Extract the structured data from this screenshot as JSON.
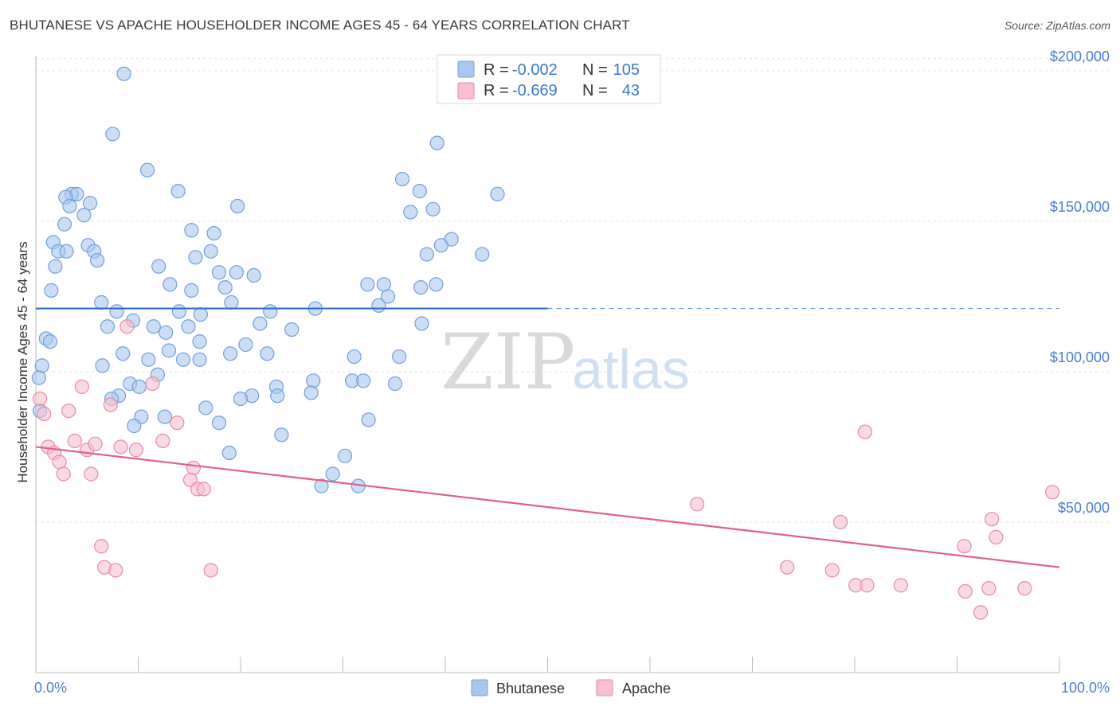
{
  "header": {
    "title": "BHUTANESE VS APACHE HOUSEHOLDER INCOME AGES 45 - 64 YEARS CORRELATION CHART",
    "source": "Source: ZipAtlas.com"
  },
  "watermark": {
    "zip": "ZIP",
    "atlas": "atlas"
  },
  "legend": {
    "rows": [
      {
        "r_label": "R =",
        "r_value": "-0.002",
        "n_label": "N =",
        "n_value": "105",
        "color": "#a9c8ef",
        "stroke": "#6fa0dc"
      },
      {
        "r_label": "R =",
        "r_value": "-0.669",
        "n_label": "N =",
        "n_value": "43",
        "color": "#f7bfd0",
        "stroke": "#e88aa8"
      }
    ]
  },
  "bottom_legend": [
    {
      "label": "Bhutanese",
      "color": "#a9c8ef",
      "stroke": "#6fa0dc"
    },
    {
      "label": "Apache",
      "color": "#f7bfd0",
      "stroke": "#e88aa8"
    }
  ],
  "chart_data": {
    "type": "scatter",
    "title": "BHUTANESE VS APACHE HOUSEHOLDER INCOME AGES 45 - 64 YEARS CORRELATION CHART",
    "xlabel": "",
    "ylabel": "Householder Income Ages 45 - 64 years",
    "xlim": [
      0,
      100
    ],
    "ylim": [
      0,
      205000
    ],
    "x_tick_labels": [
      {
        "value": 0,
        "label": "0.0%"
      },
      {
        "value": 100,
        "label": "100.0%"
      }
    ],
    "y_ticks": [
      {
        "value": 50000,
        "label": "$50,000"
      },
      {
        "value": 100000,
        "label": "$100,000"
      },
      {
        "value": 150000,
        "label": "$150,000"
      },
      {
        "value": 200000,
        "label": "$200,000"
      }
    ],
    "grid": true,
    "series": [
      {
        "name": "Bhutanese",
        "color": "#a9c8ef",
        "stroke": "#6fa0dc",
        "trend": {
          "x0": 0,
          "y0": 121000,
          "x1": 50,
          "y1": 121000,
          "dash_to_x": 100,
          "color": "#2f6fc6"
        },
        "points": [
          [
            8.6,
            199000
          ],
          [
            7.5,
            179000
          ],
          [
            10.9,
            167000
          ],
          [
            13.9,
            160000
          ],
          [
            3.5,
            159000
          ],
          [
            4.0,
            159000
          ],
          [
            2.9,
            158000
          ],
          [
            5.3,
            156000
          ],
          [
            3.3,
            155000
          ],
          [
            19.7,
            155000
          ],
          [
            35.8,
            164000
          ],
          [
            37.5,
            160000
          ],
          [
            45.1,
            159000
          ],
          [
            36.6,
            153000
          ],
          [
            38.8,
            154000
          ],
          [
            39.2,
            176000
          ],
          [
            4.7,
            152000
          ],
          [
            2.8,
            149000
          ],
          [
            15.2,
            147000
          ],
          [
            17.4,
            146000
          ],
          [
            40.6,
            144000
          ],
          [
            5.1,
            142000
          ],
          [
            1.7,
            143000
          ],
          [
            2.2,
            140000
          ],
          [
            3.0,
            140000
          ],
          [
            5.7,
            140000
          ],
          [
            17.1,
            140000
          ],
          [
            15.6,
            138000
          ],
          [
            6.0,
            137000
          ],
          [
            43.6,
            139000
          ],
          [
            39.6,
            142000
          ],
          [
            38.2,
            139000
          ],
          [
            1.9,
            135000
          ],
          [
            12.0,
            135000
          ],
          [
            17.9,
            133000
          ],
          [
            19.6,
            133000
          ],
          [
            21.3,
            132000
          ],
          [
            1.5,
            127000
          ],
          [
            13.1,
            129000
          ],
          [
            15.2,
            127000
          ],
          [
            18.5,
            128000
          ],
          [
            32.4,
            129000
          ],
          [
            34.0,
            129000
          ],
          [
            37.6,
            128000
          ],
          [
            39.1,
            129000
          ],
          [
            6.4,
            123000
          ],
          [
            19.1,
            123000
          ],
          [
            34.4,
            125000
          ],
          [
            33.5,
            122000
          ],
          [
            7.9,
            120000
          ],
          [
            14.0,
            120000
          ],
          [
            16.1,
            119000
          ],
          [
            22.9,
            120000
          ],
          [
            27.3,
            121000
          ],
          [
            9.5,
            117000
          ],
          [
            7.0,
            115000
          ],
          [
            11.5,
            115000
          ],
          [
            14.9,
            115000
          ],
          [
            21.9,
            116000
          ],
          [
            12.7,
            113000
          ],
          [
            25.0,
            114000
          ],
          [
            37.7,
            116000
          ],
          [
            1.0,
            111000
          ],
          [
            1.4,
            110000
          ],
          [
            16.0,
            110000
          ],
          [
            20.5,
            109000
          ],
          [
            8.5,
            106000
          ],
          [
            13.0,
            107000
          ],
          [
            19.0,
            106000
          ],
          [
            22.6,
            106000
          ],
          [
            31.1,
            105000
          ],
          [
            11.0,
            104000
          ],
          [
            14.4,
            104000
          ],
          [
            16.0,
            104000
          ],
          [
            35.5,
            105000
          ],
          [
            0.6,
            102000
          ],
          [
            6.5,
            102000
          ],
          [
            11.9,
            99000
          ],
          [
            9.2,
            96000
          ],
          [
            10.1,
            95000
          ],
          [
            27.1,
            97000
          ],
          [
            30.9,
            97000
          ],
          [
            32.0,
            97000
          ],
          [
            35.1,
            96000
          ],
          [
            23.5,
            95000
          ],
          [
            8.1,
            92000
          ],
          [
            21.1,
            92000
          ],
          [
            23.6,
            92000
          ],
          [
            26.9,
            93000
          ],
          [
            7.4,
            91000
          ],
          [
            20.0,
            91000
          ],
          [
            16.6,
            88000
          ],
          [
            0.4,
            87000
          ],
          [
            10.3,
            85000
          ],
          [
            12.6,
            85000
          ],
          [
            32.5,
            84000
          ],
          [
            17.9,
            83000
          ],
          [
            9.6,
            82000
          ],
          [
            24.0,
            79000
          ],
          [
            18.9,
            73000
          ],
          [
            30.2,
            72000
          ],
          [
            29.0,
            66000
          ],
          [
            27.9,
            62000
          ],
          [
            31.5,
            62000
          ],
          [
            0.3,
            98000
          ]
        ]
      },
      {
        "name": "Apache",
        "color": "#f7bfd0",
        "stroke": "#e88aa8",
        "trend": {
          "x0": 0,
          "y0": 75000,
          "x1": 100,
          "y1": 35000,
          "color": "#e0608c"
        },
        "points": [
          [
            0.4,
            91000
          ],
          [
            0.8,
            86000
          ],
          [
            3.2,
            87000
          ],
          [
            4.5,
            95000
          ],
          [
            8.9,
            115000
          ],
          [
            11.4,
            96000
          ],
          [
            7.3,
            89000
          ],
          [
            13.8,
            83000
          ],
          [
            1.2,
            75000
          ],
          [
            1.8,
            73000
          ],
          [
            2.3,
            70000
          ],
          [
            3.8,
            77000
          ],
          [
            5.0,
            74000
          ],
          [
            5.8,
            76000
          ],
          [
            8.3,
            75000
          ],
          [
            9.8,
            74000
          ],
          [
            12.4,
            77000
          ],
          [
            15.4,
            68000
          ],
          [
            2.7,
            66000
          ],
          [
            5.4,
            66000
          ],
          [
            15.1,
            64000
          ],
          [
            15.8,
            61000
          ],
          [
            16.4,
            61000
          ],
          [
            6.4,
            42000
          ],
          [
            6.7,
            35000
          ],
          [
            7.8,
            34000
          ],
          [
            17.1,
            34000
          ],
          [
            81.0,
            80000
          ],
          [
            64.6,
            56000
          ],
          [
            78.6,
            50000
          ],
          [
            93.4,
            51000
          ],
          [
            99.3,
            60000
          ],
          [
            93.8,
            45000
          ],
          [
            90.7,
            42000
          ],
          [
            73.4,
            35000
          ],
          [
            77.8,
            34000
          ],
          [
            80.1,
            29000
          ],
          [
            81.2,
            29000
          ],
          [
            84.5,
            29000
          ],
          [
            90.8,
            27000
          ],
          [
            93.1,
            28000
          ],
          [
            96.6,
            28000
          ],
          [
            92.3,
            20000
          ]
        ]
      }
    ]
  }
}
